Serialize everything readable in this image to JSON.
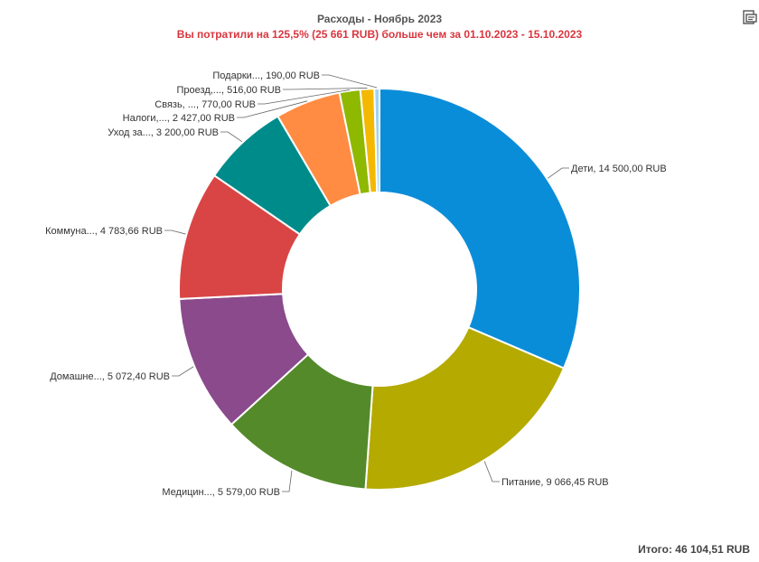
{
  "chart_data": {
    "type": "pie",
    "variant": "donut",
    "title": "Расходы - Ноябрь 2023",
    "subtitle": "Вы потратили на 125,5% (25 661 RUB) больше чем за 01.10.2023 - 15.10.2023",
    "subtitle_color": "#d9363e",
    "total_label": "Итого: 46 104,51 RUB",
    "currency": "RUB",
    "slices": [
      {
        "name": "Дети",
        "value": 14500.0,
        "label": "Дети, 14 500,00 RUB",
        "color": "#0a8dd8"
      },
      {
        "name": "Питание",
        "value": 9066.45,
        "label": "Питание, 9 066,45 RUB",
        "color": "#b5aa00"
      },
      {
        "name": "Медицин...",
        "value": 5579.0,
        "label": "Медицин..., 5 579,00 RUB",
        "color": "#548a2a"
      },
      {
        "name": "Домашне...",
        "value": 5072.4,
        "label": "Домашне..., 5 072,40 RUB",
        "color": "#8a4a8c"
      },
      {
        "name": "Коммуна...",
        "value": 4783.66,
        "label": "Коммуна..., 4 783,66 RUB",
        "color": "#d94545"
      },
      {
        "name": "Уход за...",
        "value": 3200.0,
        "label": "Уход за..., 3 200,00 RUB",
        "color": "#008b8b"
      },
      {
        "name": "Налоги,...",
        "value": 2427.0,
        "label": "Налоги,..., 2 427,00 RUB",
        "color": "#ff8c42"
      },
      {
        "name": "Связь, ...",
        "value": 770.0,
        "label": "Связь, ..., 770,00 RUB",
        "color": "#8fb800"
      },
      {
        "name": "Проезд,...",
        "value": 516.0,
        "label": "Проезд,..., 516,00 RUB",
        "color": "#f5b800"
      },
      {
        "name": "Подарки...",
        "value": 190.0,
        "label": "Подарки..., 190,00 RUB",
        "color": "#9fd3f2"
      }
    ]
  },
  "icons": {
    "export": "export-icon"
  }
}
